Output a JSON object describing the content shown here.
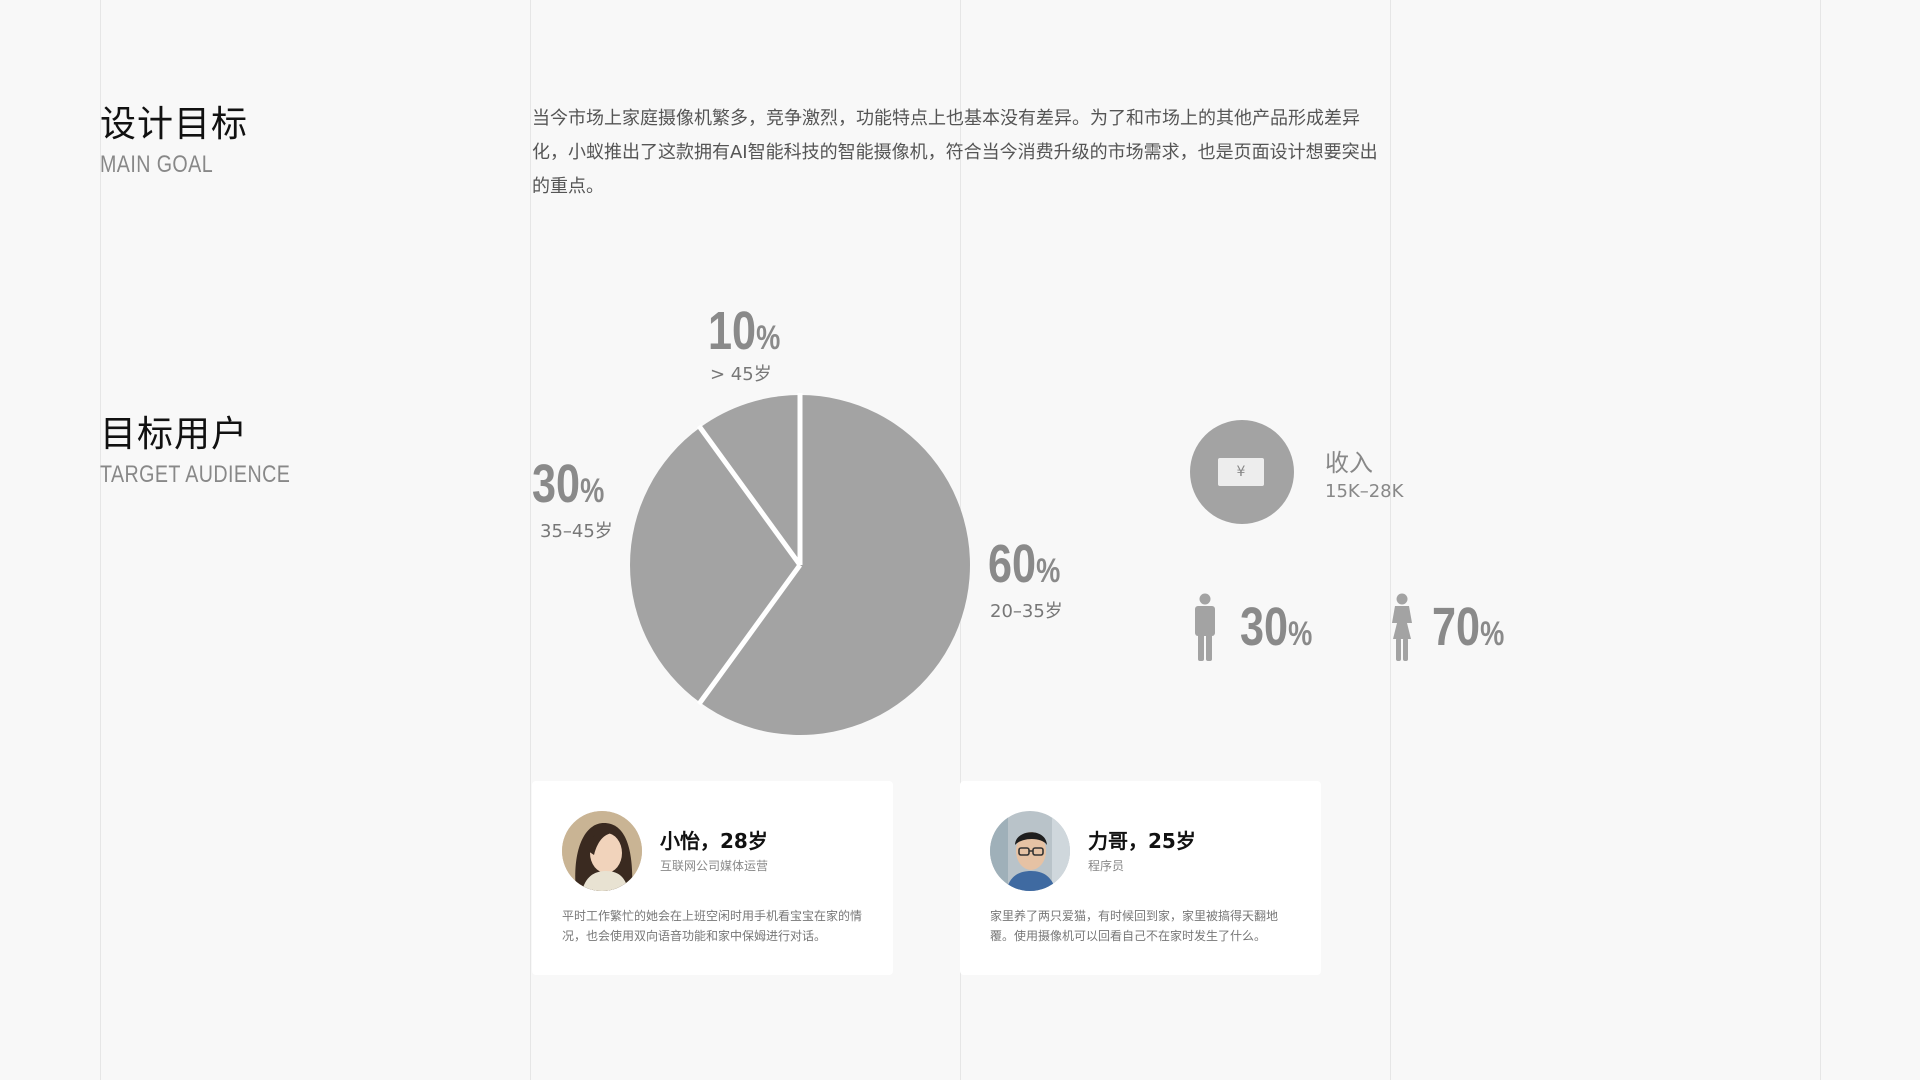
{
  "sections": {
    "goal": {
      "title": "设计目标",
      "subtitle": "MAIN GOAL",
      "text": "当今市场上家庭摄像机繁多，竞争激烈，功能特点上也基本没有差异。为了和市场上的其他产品形成差异化，小蚁推出了这款拥有AI智能科技的智能摄像机，符合当今消费升级的市场需求，也是页面设计想要突出的重点。"
    },
    "audience": {
      "title": "目标用户",
      "subtitle": "TARGET AUDIENCE"
    }
  },
  "chart_data": {
    "type": "pie",
    "title": "",
    "categories": [
      "20–35岁",
      "35–45岁",
      "> 45岁"
    ],
    "values": [
      60,
      30,
      10
    ],
    "value_labels": [
      "60",
      "30",
      "10"
    ],
    "unit": "%",
    "colors": [
      "#a3a3a3",
      "#a3a3a3",
      "#a3a3a3"
    ],
    "separator_color": "#ffffff",
    "legend": "none"
  },
  "income": {
    "label": "收入",
    "value": "15K–28K",
    "icon": "money-bill-icon",
    "icon_glyph": "¥"
  },
  "gender": {
    "male": {
      "value": "30",
      "unit": "%",
      "icon": "male-icon"
    },
    "female": {
      "value": "70",
      "unit": "%",
      "icon": "female-icon"
    }
  },
  "personas": [
    {
      "name": "小怡，28岁",
      "role": "互联网公司媒体运营",
      "description": "平时工作繁忙的她会在上班空闲时用手机看宝宝在家的情况，也会使用双向语音功能和家中保姆进行对话。"
    },
    {
      "name": "力哥，25岁",
      "role": "程序员",
      "description": "家里养了两只爱猫，有时候回到家，家里被搞得天翻地覆。使用摄像机可以回看自己不在家时发生了什么。"
    }
  ],
  "colors": {
    "background": "#f8f8f8",
    "chart_gray": "#a3a3a3",
    "number_gray": "#8a8a8a"
  }
}
